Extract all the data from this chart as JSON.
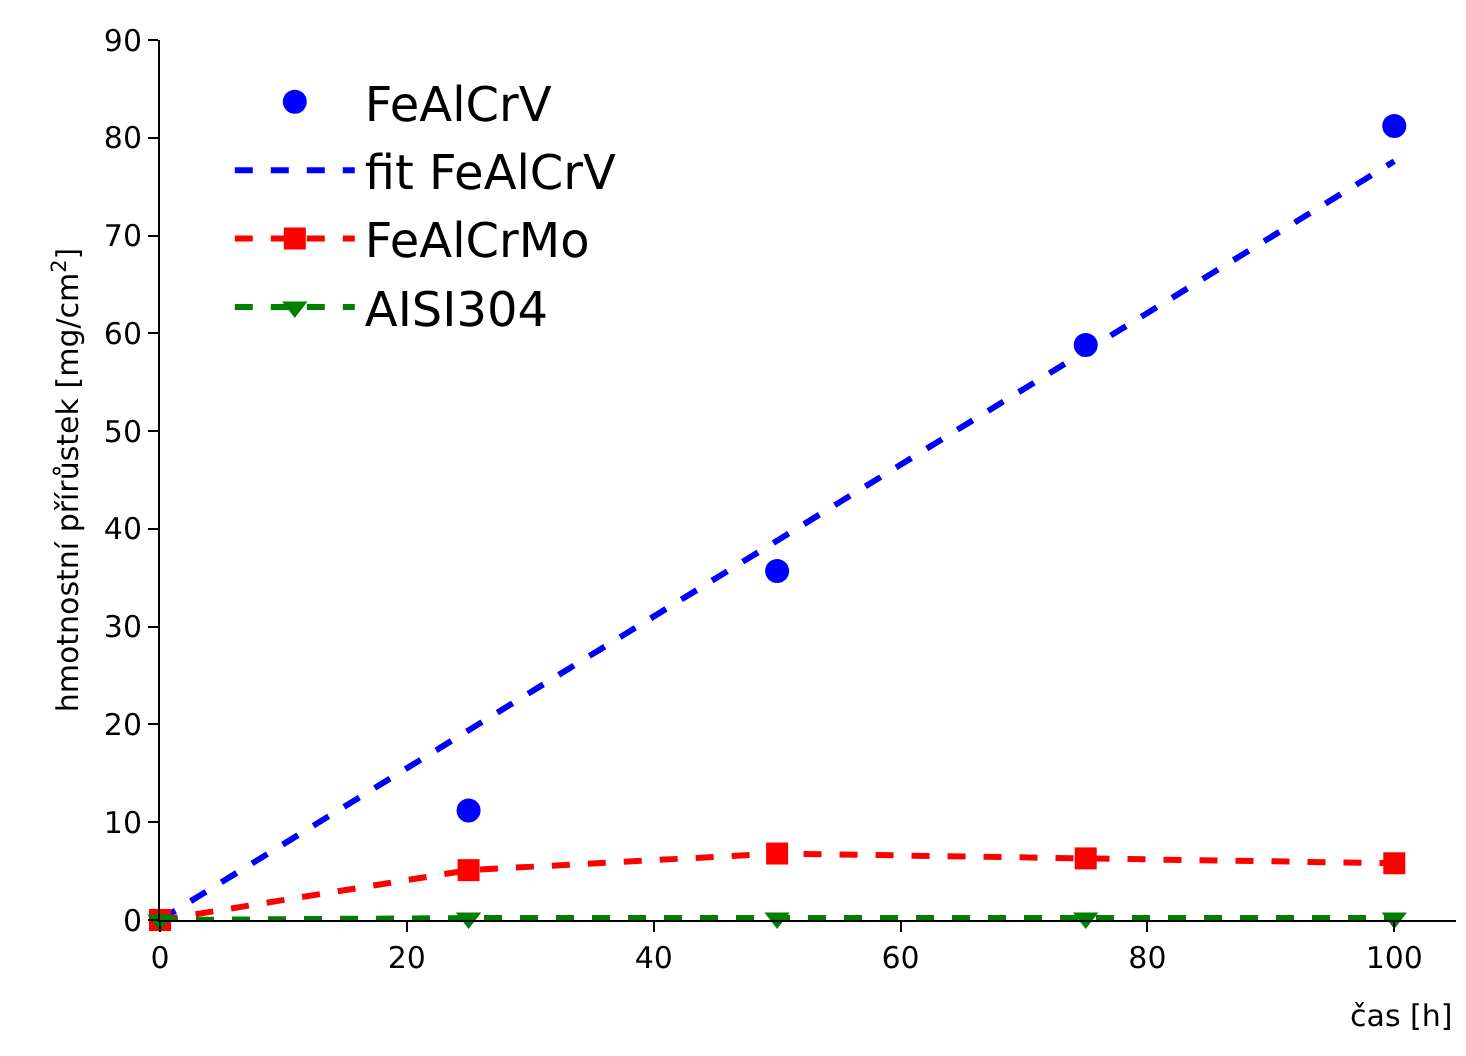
{
  "chart_data": {
    "type": "line",
    "xlabel": "čas [h]",
    "ylabel": "hmotnostní přírůstek [mg/cm$^{2}$]",
    "xlim": [
      0,
      105
    ],
    "xticks": [
      0,
      20,
      40,
      60,
      80,
      100
    ],
    "ylim": [
      0,
      90
    ],
    "yticks": [
      0,
      10,
      20,
      30,
      40,
      50,
      60,
      70,
      80,
      90
    ],
    "grid": false,
    "legend": "top left",
    "series": [
      {
        "name": "FeAlCrV",
        "type": "scatter",
        "marker": "circle",
        "color": "#0000ff",
        "x": [
          25,
          50,
          75,
          100
        ],
        "values": [
          11.2,
          35.7,
          58.8,
          81.2
        ]
      },
      {
        "name": "fit FeAlCrV",
        "marker": "none",
        "line_style": "dashed",
        "color": "#0000ff",
        "x": [
          0,
          100
        ],
        "values": [
          0,
          77.6
        ]
      },
      {
        "name": "FeAlCrMo",
        "marker": "square",
        "line_style": "dashed",
        "color": "#ff0000",
        "x": [
          0,
          25,
          50,
          75,
          100
        ],
        "values": [
          0,
          5.1,
          6.8,
          6.3,
          5.8
        ]
      },
      {
        "name": "AISI304",
        "marker": "triangle",
        "line_style": "dashed",
        "color": "#008000",
        "x": [
          0,
          25,
          50,
          75,
          100
        ],
        "values": [
          0,
          0.2,
          0.2,
          0.2,
          0.2
        ]
      }
    ]
  }
}
